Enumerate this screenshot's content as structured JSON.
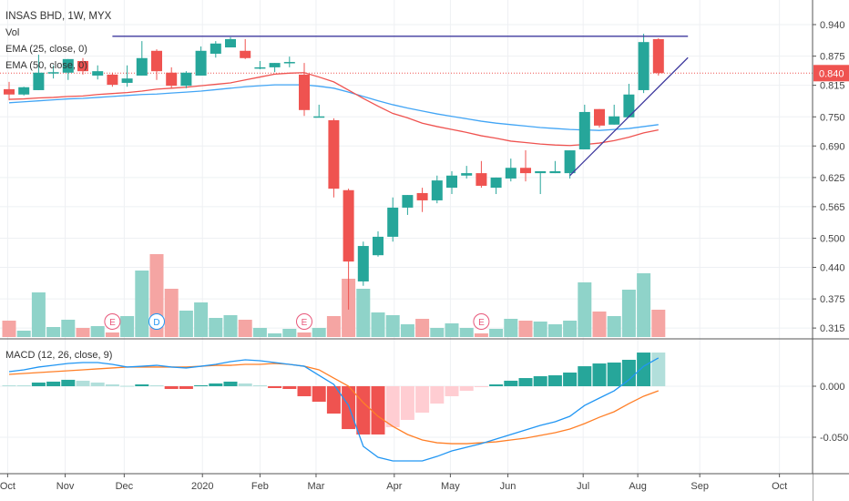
{
  "header": {
    "title": "INSAS BHD, 1W, MYX",
    "vol_label": "Vol",
    "ema25_label": "EMA (25, close, 0)",
    "ema50_label": "EMA (50, close, 0)",
    "macd_label": "MACD (12, 26, close, 9)"
  },
  "colors": {
    "up": "#26a69a",
    "down": "#ef5350",
    "up_light": "#8fd3c9",
    "down_light": "#f5a5a3",
    "hist_up_light": "#b2dfdb",
    "hist_down_light": "#ffcdd2",
    "ema25": "#ef5350",
    "ema50": "#42a5f5",
    "macd": "#2196f3",
    "signal": "#ff7f27",
    "trend": "#3f3a9e",
    "last_price": "#ef5350"
  },
  "chart_data": [
    {
      "type": "candlestick",
      "title": "INSAS BHD, 1W, MYX",
      "y_ticks": [
        "0.940",
        "0.875",
        "0.815",
        "0.750",
        "0.690",
        "0.625",
        "0.565",
        "0.500",
        "0.440",
        "0.375",
        "0.315"
      ],
      "ylim": [
        0.315,
        0.94
      ],
      "last_price_label": "0.840",
      "last_price": 0.84,
      "x_ticks": [
        {
          "label": "Oct",
          "index": -0.1
        },
        {
          "label": "Nov",
          "index": 3.8
        },
        {
          "label": "Dec",
          "index": 7.8
        },
        {
          "label": "2020",
          "index": 13.1
        },
        {
          "label": "Feb",
          "index": 17
        },
        {
          "label": "Mar",
          "index": 20.8
        },
        {
          "label": "Apr",
          "index": 26.1
        },
        {
          "label": "May",
          "index": 29.9
        },
        {
          "label": "Jun",
          "index": 33.8
        },
        {
          "label": "Jul",
          "index": 38.9
        },
        {
          "label": "Aug",
          "index": 42.6
        },
        {
          "label": "Sep",
          "index": 46.8
        },
        {
          "label": "Oct",
          "index": 52.2
        }
      ],
      "ohlc": [
        [
          0.807,
          0.822,
          0.784,
          0.796
        ],
        [
          0.796,
          0.812,
          0.794,
          0.811
        ],
        [
          0.805,
          0.878,
          0.805,
          0.841
        ],
        [
          0.841,
          0.856,
          0.829,
          0.842
        ],
        [
          0.841,
          0.869,
          0.826,
          0.869
        ],
        [
          0.865,
          0.871,
          0.837,
          0.844
        ],
        [
          0.835,
          0.856,
          0.827,
          0.844
        ],
        [
          0.837,
          0.841,
          0.812,
          0.816
        ],
        [
          0.82,
          0.856,
          0.812,
          0.829
        ],
        [
          0.835,
          0.906,
          0.835,
          0.871
        ],
        [
          0.886,
          0.889,
          0.826,
          0.844
        ],
        [
          0.841,
          0.852,
          0.809,
          0.814
        ],
        [
          0.814,
          0.844,
          0.809,
          0.841
        ],
        [
          0.835,
          0.895,
          0.835,
          0.886
        ],
        [
          0.88,
          0.906,
          0.872,
          0.901
        ],
        [
          0.893,
          0.914,
          0.893,
          0.91
        ],
        [
          0.886,
          0.91,
          0.869,
          0.871
        ],
        [
          0.852,
          0.865,
          0.848,
          0.852
        ],
        [
          0.852,
          0.861,
          0.842,
          0.861
        ],
        [
          0.863,
          0.874,
          0.852,
          0.863
        ],
        [
          0.837,
          0.861,
          0.752,
          0.764
        ],
        [
          0.751,
          0.775,
          0.751,
          0.751
        ],
        [
          0.743,
          0.747,
          0.584,
          0.602
        ],
        [
          0.599,
          0.602,
          0.353,
          0.452
        ],
        [
          0.411,
          0.493,
          0.402,
          0.484
        ],
        [
          0.465,
          0.514,
          0.462,
          0.503
        ],
        [
          0.503,
          0.584,
          0.493,
          0.563
        ],
        [
          0.563,
          0.589,
          0.548,
          0.589
        ],
        [
          0.593,
          0.604,
          0.554,
          0.578
        ],
        [
          0.578,
          0.629,
          0.572,
          0.619
        ],
        [
          0.604,
          0.638,
          0.591,
          0.629
        ],
        [
          0.629,
          0.649,
          0.623,
          0.634
        ],
        [
          0.634,
          0.659,
          0.604,
          0.608
        ],
        [
          0.604,
          0.625,
          0.591,
          0.625
        ],
        [
          0.623,
          0.664,
          0.617,
          0.645
        ],
        [
          0.645,
          0.681,
          0.617,
          0.634
        ],
        [
          0.634,
          0.638,
          0.591,
          0.638
        ],
        [
          0.634,
          0.659,
          0.634,
          0.638
        ],
        [
          0.634,
          0.681,
          0.623,
          0.681
        ],
        [
          0.683,
          0.775,
          0.683,
          0.76
        ],
        [
          0.766,
          0.766,
          0.728,
          0.732
        ],
        [
          0.734,
          0.775,
          0.734,
          0.751
        ],
        [
          0.749,
          0.818,
          0.749,
          0.796
        ],
        [
          0.805,
          0.921,
          0.799,
          0.904
        ],
        [
          0.91,
          0.912,
          0.835,
          0.84
        ]
      ],
      "volume_relative": [
        18,
        7,
        49,
        11,
        19,
        10,
        12,
        5,
        23,
        73,
        91,
        53,
        29,
        38,
        21,
        24,
        19,
        10,
        4,
        9,
        5,
        10,
        23,
        64,
        53,
        27,
        24,
        14,
        20,
        10,
        15,
        10,
        4,
        9,
        20,
        18,
        17,
        14,
        18,
        60,
        28,
        23,
        52,
        70,
        30
      ],
      "ema25": [
        0.786,
        0.787,
        0.789,
        0.79,
        0.792,
        0.793,
        0.796,
        0.798,
        0.8,
        0.803,
        0.807,
        0.809,
        0.811,
        0.814,
        0.817,
        0.82,
        0.826,
        0.832,
        0.838,
        0.84,
        0.841,
        0.832,
        0.822,
        0.805,
        0.788,
        0.772,
        0.757,
        0.748,
        0.737,
        0.73,
        0.724,
        0.718,
        0.711,
        0.706,
        0.7,
        0.697,
        0.694,
        0.692,
        0.691,
        0.693,
        0.696,
        0.701,
        0.708,
        0.717,
        0.723
      ],
      "ema50": [
        0.779,
        0.781,
        0.783,
        0.785,
        0.787,
        0.788,
        0.79,
        0.792,
        0.794,
        0.796,
        0.797,
        0.799,
        0.801,
        0.803,
        0.806,
        0.809,
        0.812,
        0.814,
        0.816,
        0.816,
        0.816,
        0.813,
        0.809,
        0.801,
        0.792,
        0.783,
        0.775,
        0.768,
        0.762,
        0.756,
        0.751,
        0.746,
        0.741,
        0.737,
        0.734,
        0.731,
        0.728,
        0.726,
        0.724,
        0.723,
        0.722,
        0.724,
        0.726,
        0.73,
        0.734
      ],
      "events": [
        {
          "label": "E",
          "index": 7,
          "kind": "earnings"
        },
        {
          "label": "D",
          "index": 10,
          "kind": "dividend"
        },
        {
          "label": "E",
          "index": 20,
          "kind": "earnings"
        },
        {
          "label": "E",
          "index": 32,
          "kind": "earnings"
        }
      ],
      "trendlines": [
        {
          "kind": "horizontal",
          "from_index": 7,
          "to_index": 46,
          "price": 0.916
        },
        {
          "kind": "diagonal",
          "from_index": 38,
          "from_price": 0.629,
          "to_index": 46,
          "to_price": 0.872
        }
      ]
    },
    {
      "type": "macd",
      "title": "MACD (12, 26, close, 9)",
      "y_ticks": [
        "0.000",
        "-0.050"
      ],
      "y_tick_values": [
        0,
        -0.05
      ],
      "macd": [
        0.0143,
        0.0161,
        0.0188,
        0.0205,
        0.0223,
        0.0232,
        0.0232,
        0.0214,
        0.0188,
        0.0196,
        0.0205,
        0.0188,
        0.0179,
        0.0196,
        0.0214,
        0.0241,
        0.0259,
        0.025,
        0.0232,
        0.0214,
        0.0196,
        0.0107,
        0.0018,
        -0.0188,
        -0.0589,
        -0.0697,
        -0.0732,
        -0.0732,
        -0.0732,
        -0.0688,
        -0.0634,
        -0.0598,
        -0.0563,
        -0.0518,
        -0.0473,
        -0.0429,
        -0.0384,
        -0.0348,
        -0.0295,
        -0.0188,
        -0.0116,
        -0.0045,
        0.0063,
        0.0196,
        0.0277
      ],
      "signal": [
        0.0116,
        0.0125,
        0.0134,
        0.0143,
        0.0152,
        0.0161,
        0.017,
        0.0179,
        0.0188,
        0.0188,
        0.0188,
        0.0188,
        0.0188,
        0.0196,
        0.0205,
        0.0205,
        0.0214,
        0.0214,
        0.0223,
        0.0214,
        0.0196,
        0.0161,
        0.008,
        0.0,
        -0.0161,
        -0.0295,
        -0.0393,
        -0.0473,
        -0.0527,
        -0.0554,
        -0.0563,
        -0.0563,
        -0.0554,
        -0.0545,
        -0.0527,
        -0.0509,
        -0.0482,
        -0.0455,
        -0.042,
        -0.0366,
        -0.0304,
        -0.025,
        -0.017,
        -0.0098,
        -0.0045
      ],
      "histogram": [
        0.0009,
        0.0009,
        0.0036,
        0.0045,
        0.0063,
        0.0054,
        0.0036,
        0.0018,
        0.0004,
        0.0018,
        0.0009,
        -0.0027,
        -0.0027,
        0.0009,
        0.0027,
        0.0045,
        0.0027,
        0.0009,
        -0.0018,
        -0.0027,
        -0.0098,
        -0.0152,
        -0.0268,
        -0.042,
        -0.0473,
        -0.0473,
        -0.0402,
        -0.033,
        -0.0259,
        -0.017,
        -0.0098,
        -0.0045,
        -0.0009,
        0.0018,
        0.0054,
        0.008,
        0.0098,
        0.0107,
        0.0134,
        0.0196,
        0.0223,
        0.0232,
        0.0259,
        0.033,
        0.033
      ]
    }
  ]
}
